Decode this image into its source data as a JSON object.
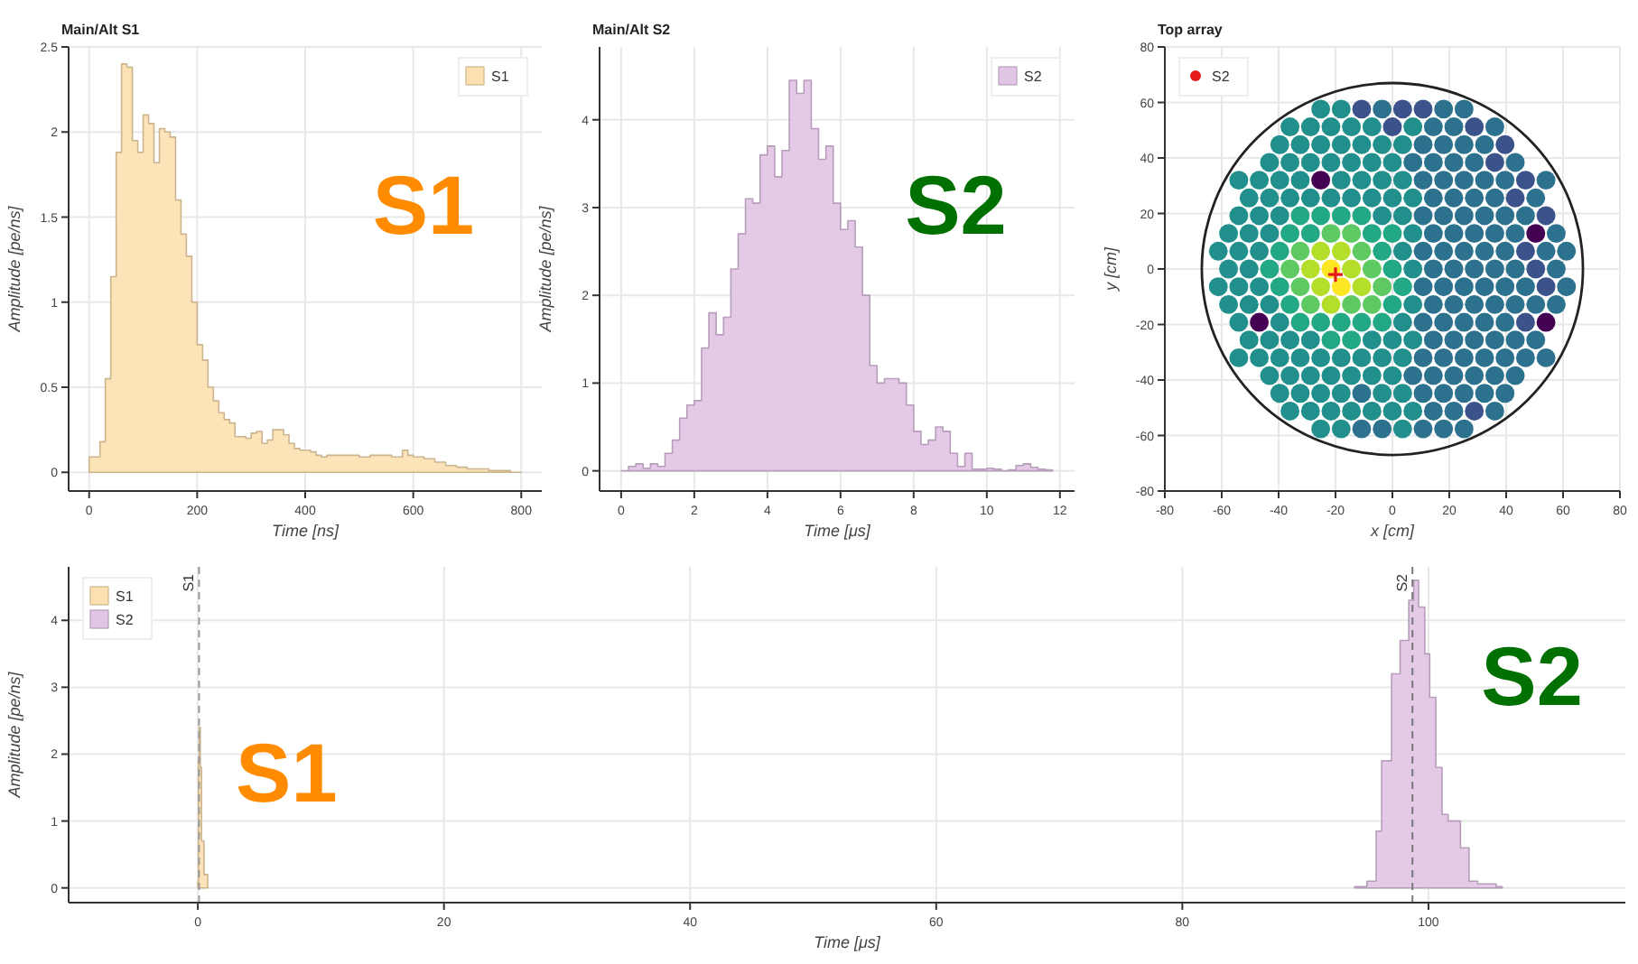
{
  "chart_data": [
    {
      "type": "area",
      "title": "Main/Alt S1",
      "xlabel": "Time [ns]",
      "ylabel": "Amplitude [pe/ns]",
      "xlim": [
        -38,
        838
      ],
      "ylim": [
        -0.11,
        2.5
      ],
      "xticks": [
        0,
        200,
        400,
        600,
        800
      ],
      "yticks": [
        0,
        0.5,
        1,
        1.5,
        2,
        2.5
      ],
      "grid": true,
      "legend": "top right",
      "annotations": [
        "S1"
      ],
      "series": [
        {
          "name": "S1",
          "color": "#fde0b0",
          "x": [
            0,
            10,
            20,
            30,
            40,
            50,
            60,
            70,
            80,
            90,
            100,
            110,
            120,
            130,
            140,
            150,
            160,
            170,
            180,
            190,
            200,
            210,
            220,
            230,
            240,
            250,
            260,
            270,
            280,
            290,
            300,
            310,
            320,
            330,
            340,
            350,
            360,
            370,
            380,
            390,
            400,
            410,
            420,
            430,
            440,
            460,
            480,
            500,
            520,
            540,
            560,
            580,
            590,
            600,
            620,
            640,
            660,
            680,
            700,
            720,
            740,
            760,
            780,
            800
          ],
          "values": [
            0.09,
            0.09,
            0.18,
            0.55,
            1.15,
            1.88,
            2.4,
            2.38,
            1.95,
            1.88,
            2.1,
            2.05,
            1.82,
            2.02,
            2.0,
            1.97,
            1.6,
            1.4,
            1.27,
            1.0,
            0.75,
            0.66,
            0.5,
            0.42,
            0.35,
            0.31,
            0.29,
            0.21,
            0.21,
            0.2,
            0.23,
            0.24,
            0.17,
            0.19,
            0.25,
            0.25,
            0.22,
            0.17,
            0.14,
            0.13,
            0.13,
            0.12,
            0.1,
            0.09,
            0.1,
            0.1,
            0.1,
            0.09,
            0.1,
            0.1,
            0.09,
            0.13,
            0.1,
            0.09,
            0.08,
            0.06,
            0.04,
            0.03,
            0.02,
            0.02,
            0.01,
            0.01,
            0,
            0
          ]
        }
      ]
    },
    {
      "type": "area",
      "title": "Main/Alt S2",
      "xlabel": "Time [μs]",
      "ylabel": "Amplitude [pe/ns]",
      "xlim": [
        -0.59,
        12.4
      ],
      "ylim": [
        -0.23,
        4.83
      ],
      "xticks": [
        0,
        2,
        4,
        6,
        8,
        10,
        12
      ],
      "yticks": [
        0,
        1,
        2,
        3,
        4
      ],
      "grid": true,
      "legend": "top right",
      "annotations": [
        "S2"
      ],
      "series": [
        {
          "name": "S2",
          "color": "#e2c4e6",
          "x": [
            0,
            0.2,
            0.4,
            0.6,
            0.8,
            1.0,
            1.2,
            1.4,
            1.6,
            1.8,
            2.0,
            2.2,
            2.4,
            2.6,
            2.8,
            3.0,
            3.2,
            3.4,
            3.6,
            3.8,
            4.0,
            4.2,
            4.4,
            4.6,
            4.8,
            5.0,
            5.2,
            5.4,
            5.6,
            5.8,
            6.0,
            6.2,
            6.4,
            6.6,
            6.8,
            7.0,
            7.2,
            7.4,
            7.6,
            7.8,
            8.0,
            8.2,
            8.4,
            8.6,
            8.8,
            9.0,
            9.2,
            9.4,
            9.6,
            9.8,
            10.0,
            10.2,
            10.4,
            10.6,
            10.8,
            11.0,
            11.2,
            11.4,
            11.6,
            11.8
          ],
          "values": [
            0,
            0.05,
            0.08,
            0.03,
            0.08,
            0.05,
            0.2,
            0.35,
            0.6,
            0.75,
            0.8,
            1.4,
            1.8,
            1.55,
            1.75,
            2.3,
            2.7,
            3.1,
            3.05,
            3.6,
            3.7,
            3.35,
            3.65,
            4.45,
            4.3,
            4.45,
            3.9,
            3.55,
            3.7,
            3.05,
            2.75,
            2.85,
            2.55,
            2.0,
            1.2,
            1.0,
            1.05,
            1.05,
            1.0,
            0.75,
            0.45,
            0.3,
            0.35,
            0.5,
            0.45,
            0.2,
            0.05,
            0.2,
            0.02,
            0.02,
            0.03,
            0.02,
            0,
            0.01,
            0.06,
            0.08,
            0.04,
            0.02,
            0.01,
            0
          ]
        }
      ]
    },
    {
      "type": "scatter",
      "title": "Top array",
      "xlabel": "x [cm]",
      "ylabel": "y [cm]",
      "xlim": [
        -80,
        80
      ],
      "ylim": [
        -80,
        80
      ],
      "xticks": [
        -80,
        -60,
        -40,
        -20,
        0,
        20,
        40,
        60,
        80
      ],
      "yticks": [
        -80,
        -60,
        -40,
        -20,
        0,
        20,
        40,
        60,
        80
      ],
      "grid": true,
      "legend": "top left",
      "marker": "circle",
      "series": [
        {
          "x": [
            -25.2,
            -18,
            -10.8,
            -3.6,
            3.6,
            10.8,
            18,
            25.2
          ],
          "values": [
            57.6,
            57.6,
            57.6,
            57.6,
            57.6,
            57.6,
            57.6,
            57.6
          ],
          "colors": [
            "#21908d",
            "#21908d",
            "#3b528b",
            "#2c728e",
            "#3b528b",
            "#3b528b",
            "#2c728e",
            "#2c728e"
          ]
        },
        {
          "x": [
            -36,
            -28.8,
            -21.6,
            -14.4,
            -7.2,
            0,
            7.2,
            14.4,
            21.6,
            28.8,
            36
          ],
          "values": [
            51.2,
            51.2,
            51.2,
            51.2,
            51.2,
            51.2,
            51.2,
            51.2,
            51.2,
            51.2,
            51.2
          ],
          "colors": [
            "#21908d",
            "#21908d",
            "#21908d",
            "#21908d",
            "#21908d",
            "#3b528b",
            "#21908d",
            "#2c728e",
            "#2c728e",
            "#3b528b",
            "#2c728e"
          ]
        },
        {
          "x": [
            -39.6,
            -32.4,
            -25.2,
            -18,
            -10.8,
            -3.6,
            3.6,
            10.8,
            18,
            25.2,
            32.4,
            39.6
          ],
          "values": [
            44.8,
            44.8,
            44.8,
            44.8,
            44.8,
            44.8,
            44.8,
            44.8,
            44.8,
            44.8,
            44.8,
            44.8
          ],
          "colors": [
            "#21908d",
            "#21908d",
            "#21908d",
            "#21908d",
            "#21908d",
            "#21908d",
            "#21908d",
            "#2c728e",
            "#2c728e",
            "#2c728e",
            "#2c728e",
            "#3b528b"
          ]
        },
        {
          "x": [
            -43.2,
            -36,
            -28.8,
            -21.6,
            -14.4,
            -7.2,
            0,
            7.2,
            14.4,
            21.6,
            28.8,
            36,
            43.2
          ],
          "values": [
            38.4,
            38.4,
            38.4,
            38.4,
            38.4,
            38.4,
            38.4,
            38.4,
            38.4,
            38.4,
            38.4,
            38.4,
            38.4
          ],
          "colors": [
            "#21908d",
            "#21908d",
            "#21908d",
            "#21908d",
            "#21908d",
            "#21908d",
            "#21908d",
            "#2c728e",
            "#2c728e",
            "#2c728e",
            "#2c728e",
            "#3b528b",
            "#2c728e"
          ]
        },
        {
          "x": [
            -54,
            -46.8,
            -39.6,
            -32.4,
            -25.2,
            -18,
            -10.8,
            -3.6,
            3.6,
            10.8,
            18,
            25.2,
            32.4,
            39.6,
            46.8,
            54
          ],
          "values": [
            32,
            32,
            32,
            32,
            32,
            32,
            32,
            32,
            32,
            32,
            32,
            32,
            32,
            32,
            32,
            32
          ],
          "colors": [
            "#21908d",
            "#21908d",
            "#21908d",
            "#21908d",
            "#440154",
            "#21908d",
            "#21908d",
            "#21908d",
            "#21908d",
            "#2c728e",
            "#2c728e",
            "#2c728e",
            "#2c728e",
            "#2c728e",
            "#3b528b",
            "#2c728e"
          ]
        },
        {
          "x": [
            -50.4,
            -43.2,
            -36,
            -28.8,
            -21.6,
            -14.4,
            -7.2,
            0,
            7.2,
            14.4,
            21.6,
            28.8,
            36,
            43.2,
            50.4
          ],
          "values": [
            25.6,
            25.6,
            25.6,
            25.6,
            25.6,
            25.6,
            25.6,
            25.6,
            25.6,
            25.6,
            25.6,
            25.6,
            25.6,
            25.6,
            25.6
          ],
          "colors": [
            "#21908d",
            "#21908d",
            "#21908d",
            "#21908d",
            "#21908d",
            "#21908d",
            "#21908d",
            "#21908d",
            "#21908d",
            "#2c728e",
            "#2c728e",
            "#2c728e",
            "#2c728e",
            "#3b528b",
            "#2c728e"
          ]
        },
        {
          "x": [
            -54,
            -46.8,
            -39.6,
            -32.4,
            -25.2,
            -18,
            -10.8,
            -3.6,
            3.6,
            10.8,
            18,
            25.2,
            32.4,
            39.6,
            46.8,
            54
          ],
          "values": [
            19.2,
            19.2,
            19.2,
            19.2,
            19.2,
            19.2,
            19.2,
            19.2,
            19.2,
            19.2,
            19.2,
            19.2,
            19.2,
            19.2,
            19.2,
            19.2
          ],
          "colors": [
            "#21908d",
            "#21908d",
            "#21908d",
            "#22a884",
            "#22a884",
            "#22a884",
            "#22a884",
            "#21908d",
            "#21908d",
            "#2c728e",
            "#2c728e",
            "#2c728e",
            "#2c728e",
            "#2c728e",
            "#2c728e",
            "#3b528b"
          ]
        },
        {
          "x": [
            -57.6,
            -50.4,
            -43.2,
            -36,
            -28.8,
            -21.6,
            -14.4,
            -7.2,
            0,
            7.2,
            14.4,
            21.6,
            28.8,
            36,
            43.2,
            50.4,
            57.6
          ],
          "values": [
            12.8,
            12.8,
            12.8,
            12.8,
            12.8,
            12.8,
            12.8,
            12.8,
            12.8,
            12.8,
            12.8,
            12.8,
            12.8,
            12.8,
            12.8,
            12.8,
            12.8
          ],
          "colors": [
            "#21908d",
            "#21908d",
            "#21908d",
            "#22a884",
            "#22a884",
            "#5ec962",
            "#5ec962",
            "#22a884",
            "#22a884",
            "#21908d",
            "#2c728e",
            "#2c728e",
            "#2c728e",
            "#2c728e",
            "#2c728e",
            "#440154",
            "#2c728e"
          ]
        },
        {
          "x": [
            -61.2,
            -54,
            -46.8,
            -39.6,
            -32.4,
            -25.2,
            -18,
            -10.8,
            -3.6,
            3.6,
            10.8,
            18,
            25.2,
            32.4,
            39.6,
            46.8,
            54,
            61.2
          ],
          "values": [
            6.4,
            6.4,
            6.4,
            6.4,
            6.4,
            6.4,
            6.4,
            6.4,
            6.4,
            6.4,
            6.4,
            6.4,
            6.4,
            6.4,
            6.4,
            6.4,
            6.4,
            6.4
          ],
          "colors": [
            "#21908d",
            "#21908d",
            "#21908d",
            "#22a884",
            "#5ec962",
            "#b5de2b",
            "#b5de2b",
            "#5ec962",
            "#22a884",
            "#21908d",
            "#2c728e",
            "#2c728e",
            "#2c728e",
            "#2c728e",
            "#2c728e",
            "#3b528b",
            "#2c728e",
            "#2c728e"
          ]
        },
        {
          "x": [
            -57.6,
            -50.4,
            -43.2,
            -36,
            -28.8,
            -21.6,
            -14.4,
            -7.2,
            0,
            7.2,
            14.4,
            21.6,
            28.8,
            36,
            43.2,
            50.4,
            57.6
          ],
          "values": [
            0,
            0,
            0,
            0,
            0,
            0,
            0,
            0,
            0,
            0,
            0,
            0,
            0,
            0,
            0,
            0,
            0
          ],
          "colors": [
            "#21908d",
            "#21908d",
            "#22a884",
            "#5ec962",
            "#b5de2b",
            "#fde725",
            "#b5de2b",
            "#5ec962",
            "#22a884",
            "#21908d",
            "#2c728e",
            "#2c728e",
            "#2c728e",
            "#2c728e",
            "#2c728e",
            "#3b528b",
            "#2c728e"
          ]
        },
        {
          "x": [
            -61.2,
            -54,
            -46.8,
            -39.6,
            -32.4,
            -25.2,
            -18,
            -10.8,
            -3.6,
            3.6,
            10.8,
            18,
            25.2,
            32.4,
            39.6,
            46.8,
            54,
            61.2
          ],
          "values": [
            -6.4,
            -6.4,
            -6.4,
            -6.4,
            -6.4,
            -6.4,
            -6.4,
            -6.4,
            -6.4,
            -6.4,
            -6.4,
            -6.4,
            -6.4,
            -6.4,
            -6.4,
            -6.4,
            -6.4,
            -6.4
          ],
          "colors": [
            "#21908d",
            "#21908d",
            "#21908d",
            "#22a884",
            "#5ec962",
            "#b5de2b",
            "#fde725",
            "#b5de2b",
            "#5ec962",
            "#22a884",
            "#2c728e",
            "#2c728e",
            "#2c728e",
            "#2c728e",
            "#2c728e",
            "#2c728e",
            "#3b528b",
            "#2c728e"
          ]
        },
        {
          "x": [
            -57.6,
            -50.4,
            -43.2,
            -36,
            -28.8,
            -21.6,
            -14.4,
            -7.2,
            0,
            7.2,
            14.4,
            21.6,
            28.8,
            36,
            43.2,
            50.4,
            57.6
          ],
          "values": [
            -12.8,
            -12.8,
            -12.8,
            -12.8,
            -12.8,
            -12.8,
            -12.8,
            -12.8,
            -12.8,
            -12.8,
            -12.8,
            -12.8,
            -12.8,
            -12.8,
            -12.8,
            -12.8,
            -12.8
          ],
          "colors": [
            "#21908d",
            "#21908d",
            "#21908d",
            "#22a884",
            "#5ec962",
            "#b5de2b",
            "#5ec962",
            "#5ec962",
            "#22a884",
            "#21908d",
            "#2c728e",
            "#2c728e",
            "#2c728e",
            "#2c728e",
            "#2c728e",
            "#2c728e",
            "#2c728e"
          ]
        },
        {
          "x": [
            -54,
            -46.8,
            -39.6,
            -32.4,
            -25.2,
            -18,
            -10.8,
            -3.6,
            3.6,
            10.8,
            18,
            25.2,
            32.4,
            39.6,
            46.8,
            54
          ],
          "values": [
            -19.2,
            -19.2,
            -19.2,
            -19.2,
            -19.2,
            -19.2,
            -19.2,
            -19.2,
            -19.2,
            -19.2,
            -19.2,
            -19.2,
            -19.2,
            -19.2,
            -19.2,
            -19.2
          ],
          "colors": [
            "#21908d",
            "#440154",
            "#21908d",
            "#22a884",
            "#22a884",
            "#22a884",
            "#22a884",
            "#22a884",
            "#21908d",
            "#2c728e",
            "#2c728e",
            "#2c728e",
            "#2c728e",
            "#2c728e",
            "#3b528b",
            "#440154"
          ]
        },
        {
          "x": [
            -50.4,
            -43.2,
            -36,
            -28.8,
            -21.6,
            -14.4,
            -7.2,
            0,
            7.2,
            14.4,
            21.6,
            28.8,
            36,
            43.2,
            50.4
          ],
          "values": [
            -25.6,
            -25.6,
            -25.6,
            -25.6,
            -25.6,
            -25.6,
            -25.6,
            -25.6,
            -25.6,
            -25.6,
            -25.6,
            -25.6,
            -25.6,
            -25.6,
            -25.6
          ],
          "colors": [
            "#21908d",
            "#21908d",
            "#21908d",
            "#21908d",
            "#22a884",
            "#22a884",
            "#21908d",
            "#21908d",
            "#21908d",
            "#2c728e",
            "#2c728e",
            "#2c728e",
            "#2c728e",
            "#2c728e",
            "#2c728e"
          ]
        },
        {
          "x": [
            -54,
            -46.8,
            -39.6,
            -32.4,
            -25.2,
            -18,
            -10.8,
            -3.6,
            3.6,
            10.8,
            18,
            25.2,
            32.4,
            39.6,
            46.8,
            54
          ],
          "values": [
            -32,
            -32,
            -32,
            -32,
            -32,
            -32,
            -32,
            -32,
            -32,
            -32,
            -32,
            -32,
            -32,
            -32,
            -32,
            -32
          ],
          "colors": [
            "#21908d",
            "#21908d",
            "#21908d",
            "#21908d",
            "#21908d",
            "#21908d",
            "#21908d",
            "#21908d",
            "#21908d",
            "#2c728e",
            "#2c728e",
            "#2c728e",
            "#2c728e",
            "#2c728e",
            "#2c728e",
            "#2c728e"
          ]
        },
        {
          "x": [
            -43.2,
            -36,
            -28.8,
            -21.6,
            -14.4,
            -7.2,
            0,
            7.2,
            14.4,
            21.6,
            28.8,
            36,
            43.2
          ],
          "values": [
            -38.4,
            -38.4,
            -38.4,
            -38.4,
            -38.4,
            -38.4,
            -38.4,
            -38.4,
            -38.4,
            -38.4,
            -38.4,
            -38.4,
            -38.4
          ],
          "colors": [
            "#21908d",
            "#21908d",
            "#21908d",
            "#21908d",
            "#21908d",
            "#21908d",
            "#21908d",
            "#2c728e",
            "#2c728e",
            "#2c728e",
            "#2c728e",
            "#2c728e",
            "#2c728e"
          ]
        },
        {
          "x": [
            -39.6,
            -32.4,
            -25.2,
            -18,
            -10.8,
            -3.6,
            3.6,
            10.8,
            18,
            25.2,
            32.4,
            39.6
          ],
          "values": [
            -44.8,
            -44.8,
            -44.8,
            -44.8,
            -44.8,
            -44.8,
            -44.8,
            -44.8,
            -44.8,
            -44.8,
            -44.8,
            -44.8
          ],
          "colors": [
            "#21908d",
            "#21908d",
            "#21908d",
            "#21908d",
            "#2c728e",
            "#21908d",
            "#21908d",
            "#2c728e",
            "#2c728e",
            "#2c728e",
            "#2c728e",
            "#2c728e"
          ]
        },
        {
          "x": [
            -36,
            -28.8,
            -21.6,
            -14.4,
            -7.2,
            0,
            7.2,
            14.4,
            21.6,
            28.8,
            36
          ],
          "values": [
            -51.2,
            -51.2,
            -51.2,
            -51.2,
            -51.2,
            -51.2,
            -51.2,
            -51.2,
            -51.2,
            -51.2,
            -51.2
          ],
          "colors": [
            "#21908d",
            "#21908d",
            "#21908d",
            "#21908d",
            "#21908d",
            "#21908d",
            "#21908d",
            "#2c728e",
            "#2c728e",
            "#3b528b",
            "#2c728e"
          ]
        },
        {
          "x": [
            -25.2,
            -18,
            -10.8,
            -3.6,
            3.6,
            10.8,
            18,
            25.2
          ],
          "values": [
            -57.6,
            -57.6,
            -57.6,
            -57.6,
            -57.6,
            -57.6,
            -57.6,
            -57.6
          ],
          "colors": [
            "#21908d",
            "#21908d",
            "#2c728e",
            "#2c728e",
            "#21908d",
            "#2c728e",
            "#2c728e",
            "#2c728e"
          ]
        },
        {
          "name": "S2",
          "color": "#e41a1c",
          "marker": "cross",
          "x": [
            -20
          ],
          "values": [
            -2
          ]
        }
      ]
    },
    {
      "type": "area",
      "xlabel": "Time [μs]",
      "ylabel": "Amplitude [pe/ns]",
      "xlim": [
        -10.5,
        116
      ],
      "ylim": [
        -0.22,
        4.8
      ],
      "xticks": [
        0,
        20,
        40,
        60,
        80,
        100
      ],
      "yticks": [
        0,
        1,
        2,
        3,
        4
      ],
      "grid": true,
      "legend": "top left",
      "annotations": [
        "S1",
        "S2"
      ],
      "ref_lines": [
        {
          "axis": "x",
          "value": 0.1,
          "label": "S1",
          "color": "#999999",
          "line_style": "dashed"
        },
        {
          "axis": "x",
          "value": 98.7,
          "label": "S2",
          "color": "#777777",
          "line_style": "dashed"
        }
      ],
      "series": [
        {
          "name": "S1",
          "color": "#fde0b0",
          "x": [
            0,
            0.05,
            0.1,
            0.2,
            0.3,
            0.5,
            0.8
          ],
          "values": [
            0.09,
            1.9,
            2.4,
            1.8,
            0.7,
            0.2,
            0
          ]
        },
        {
          "name": "S2",
          "color": "#e2c4e6",
          "x": [
            94.0,
            95.0,
            95.75,
            96.2,
            97.0,
            97.7,
            98.4,
            98.8,
            99.2,
            99.7,
            100.1,
            100.6,
            101.1,
            101.6,
            102.6,
            103.3,
            104.0,
            105.5,
            106
          ],
          "values": [
            0.02,
            0.1,
            0.85,
            1.9,
            3.2,
            3.7,
            4.3,
            4.6,
            4.2,
            3.5,
            2.85,
            1.8,
            1.1,
            1.0,
            0.6,
            0.1,
            0.06,
            0.02,
            0
          ]
        }
      ]
    }
  ]
}
